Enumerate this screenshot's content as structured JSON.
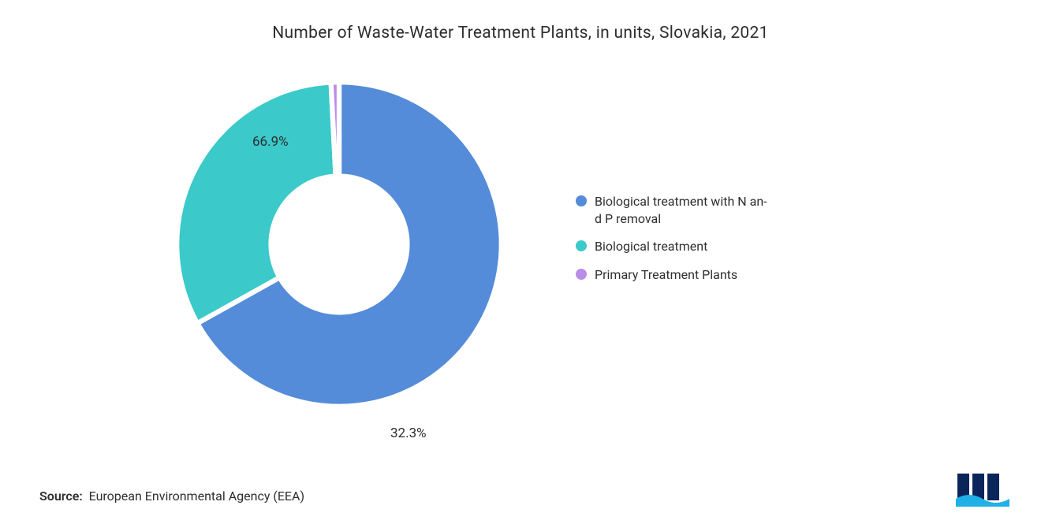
{
  "chart": {
    "type": "donut",
    "title": "Number of Waste-Water Treatment Plants, in units, Slovakia, 2021",
    "title_fontsize": 21,
    "title_color": "#2e2e2e",
    "background_color": "#ffffff",
    "inner_radius_ratio": 0.42,
    "stroke_color": "#ffffff",
    "stroke_width": 3,
    "start_angle_deg": -90,
    "slices": [
      {
        "label": "Biological treatment with N an-\nd P removal",
        "value": 66.9,
        "color": "#548cd9",
        "display": "66.9%"
      },
      {
        "label": "Biological treatment",
        "value": 32.3,
        "color": "#3bc9c9",
        "display": "32.3%"
      },
      {
        "label": "Primary Treatment Plants",
        "value": 0.8,
        "color": "#b98ce8",
        "display": ""
      }
    ],
    "label_fontsize": 17,
    "label_color": "#2e2e2e",
    "legend": {
      "fontsize": 16,
      "text_color": "#2e2e2e",
      "swatch_radius": 7,
      "items": [
        {
          "text_line1": "Biological treatment with N an-",
          "text_line2": "d P removal",
          "color": "#548cd9"
        },
        {
          "text_line1": "Biological treatment",
          "text_line2": "",
          "color": "#3bc9c9"
        },
        {
          "text_line1": "Primary Treatment Plants",
          "text_line2": "",
          "color": "#b98ce8"
        }
      ]
    },
    "source": {
      "label": "Source:",
      "text": "European Environmental Agency (EEA)",
      "fontsize": 16,
      "color": "#2e2e2e"
    },
    "logo": {
      "bar_color": "#0a2559",
      "wave_color": "#1fb0e6"
    }
  }
}
